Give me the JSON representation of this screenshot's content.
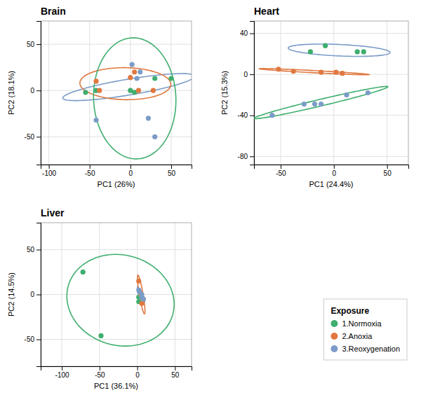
{
  "chart_data": [
    {
      "type": "scatter",
      "title": "Brain",
      "xlabel": "PC1 (26%)",
      "ylabel": "PC2 (18.1%)",
      "xlim": [
        -110,
        75
      ],
      "ylim": [
        -80,
        75
      ],
      "xticks": [
        -100,
        -50,
        0,
        50
      ],
      "yticks": [
        -50,
        0,
        50
      ],
      "grid": true,
      "series": [
        {
          "name": "1.Normoxia",
          "color": "#3fae6e",
          "x": [
            -55,
            -42,
            0,
            5,
            30,
            50
          ],
          "values": [
            -2,
            0,
            0,
            -2,
            13,
            13
          ],
          "ellipse": {
            "center": [
              -2,
              3.667
            ],
            "width": 163.59,
            "height": 17.18,
            "angle": 8.32,
            "color": "#7b9cc8"
          }
        },
        {
          "name": "2.Anoxia",
          "color": "#e07840",
          "x": [
            -42,
            -38,
            0,
            5,
            10,
            28
          ],
          "values": [
            10,
            0,
            14,
            20,
            0,
            0
          ],
          "ellipse": {
            "center": [
              -6.167,
              7.333
            ],
            "width": 111.56,
            "height": 34.53,
            "angle": -0.79,
            "color": "#e07840"
          }
        },
        {
          "name": "3.Reoxygenation",
          "color": "#7b9cc8",
          "x": [
            -42,
            2,
            8,
            12,
            22,
            30
          ],
          "values": [
            -32,
            28,
            13,
            20,
            -30,
            -50
          ],
          "ellipse": {
            "center": [
              5.333,
              -8.5
            ],
            "width": 130.88,
            "height": 100.87,
            "angle": -86.19,
            "color": "#3fae6e"
          }
        }
      ]
    },
    {
      "type": "scatter",
      "title": "Heart",
      "xlabel": "PC1 (24.4%)",
      "ylabel": "PC2 (15.3%)",
      "xlim": [
        -75,
        70
      ],
      "ylim": [
        -88,
        52
      ],
      "xticks": [
        -50,
        0,
        50
      ],
      "yticks": [
        -80,
        -40,
        0,
        40
      ],
      "grid": true,
      "series": [
        {
          "name": "1.Normoxia",
          "color": "#3fae6e",
          "x": [
            -22,
            -8,
            22,
            28
          ],
          "values": [
            22,
            28,
            22,
            22
          ],
          "ellipse": {
            "center": [
              5,
              23.5
            ],
            "width": 95.77,
            "height": 11.17,
            "angle": -2.64,
            "color": "#7b9cc8"
          }
        },
        {
          "name": "2.Anoxia",
          "color": "#e07840",
          "x": [
            -52,
            -38,
            -12,
            2,
            8
          ],
          "values": [
            5,
            3,
            2,
            2,
            1
          ],
          "ellipse": {
            "center": [
              -18.4,
              2.6
            ],
            "width": 103.45,
            "height": 2.11,
            "angle": -3.15,
            "color": "#e07840"
          }
        },
        {
          "name": "3.Reoxygenation",
          "color": "#7b9cc8",
          "x": [
            -58,
            -28,
            -18,
            -12,
            12,
            32
          ],
          "values": [
            -40,
            -29,
            -29,
            -29,
            -20,
            -18
          ],
          "ellipse": {
            "center": [
              -12,
              -27.5
            ],
            "width": 129.2,
            "height": 6.47,
            "angle": 13.81,
            "color": "#3fae6e"
          }
        }
      ]
    },
    {
      "type": "scatter",
      "title": "Liver",
      "xlabel": "PC1 (36.1%)",
      "ylabel": "PC2 (14.5%)",
      "xlim": [
        -128,
        72
      ],
      "ylim": [
        -80,
        80
      ],
      "xticks": [
        -100,
        -50,
        0,
        50
      ],
      "yticks": [
        -50,
        0,
        50
      ],
      "grid": true,
      "legend": "lower right",
      "legend_title": "Exposure",
      "series": [
        {
          "name": "1.Normoxia",
          "color": "#3fae6e",
          "x": [
            -72,
            -48,
            2,
            2,
            5
          ],
          "values": [
            25,
            -46,
            -8,
            -3,
            0
          ],
          "ellipse": {
            "center": [
              -22.2,
              -6.4
            ],
            "width": 142.82,
            "height": 101.33,
            "angle": -7.42,
            "color": "#3fae6e"
          }
        },
        {
          "name": "2.Anoxia",
          "color": "#e07840",
          "x": [
            2,
            5,
            6,
            8
          ],
          "values": [
            15,
            0,
            -10,
            -5
          ],
          "ellipse": {
            "center": [
              5.25,
              0
            ],
            "width": 44.07,
            "height": 4.93,
            "angle": -78.54,
            "color": "#e07840"
          }
        },
        {
          "name": "3.Reoxygenation",
          "color": "#7b9cc8",
          "x": [
            2,
            3,
            6,
            6,
            8
          ],
          "values": [
            5,
            3,
            0,
            -3,
            -5
          ],
          "ellipse": {
            "center": [
              5,
              0
            ],
            "width": 19.06,
            "height": 2.21,
            "angle": -59.71,
            "color": "#7b9cc8"
          }
        }
      ]
    }
  ]
}
